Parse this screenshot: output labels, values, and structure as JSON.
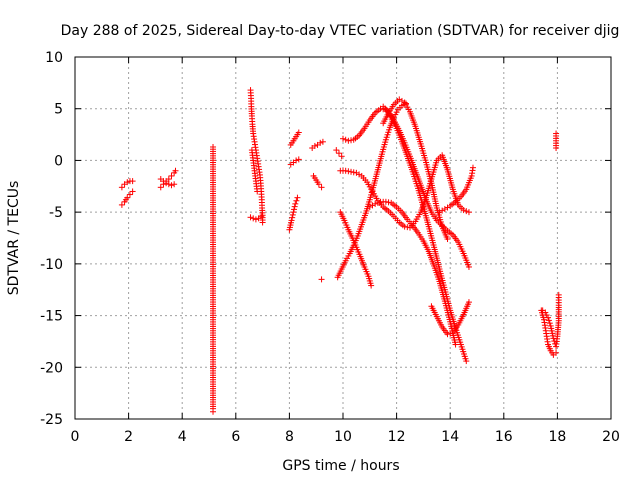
{
  "chart_data": {
    "type": "scatter",
    "title": "Day 288 of 2025, Sidereal Day-to-day VTEC variation (SDTVAR) for receiver djig",
    "xlabel": "GPS time / hours",
    "ylabel": "SDTVAR / TECUs",
    "xlim": [
      0,
      20
    ],
    "ylim": [
      -25,
      10
    ],
    "x_ticks": [
      0,
      2,
      4,
      6,
      8,
      10,
      12,
      14,
      16,
      18,
      20
    ],
    "y_ticks": [
      -25,
      -20,
      -15,
      -10,
      -5,
      0,
      5,
      10
    ],
    "x_tick_labels": [
      "0",
      "2",
      "4",
      "6",
      "8",
      "10",
      "12",
      "14",
      "16",
      "18",
      "20"
    ],
    "y_tick_labels": [
      "-25",
      "-20",
      "-15",
      "-10",
      "-5",
      "0",
      "5",
      "10"
    ],
    "grid": true,
    "marker": "+",
    "color": "#ff0000",
    "series": [
      {
        "name": "s1",
        "points": [
          [
            1.75,
            -2.6
          ],
          [
            1.85,
            -2.3
          ],
          [
            1.95,
            -2.1
          ],
          [
            2.05,
            -2.0
          ],
          [
            2.15,
            -2.0
          ]
        ]
      },
      {
        "name": "s2",
        "points": [
          [
            1.75,
            -4.3
          ],
          [
            1.85,
            -4.0
          ],
          [
            1.95,
            -3.6
          ],
          [
            2.05,
            -3.3
          ],
          [
            2.15,
            -3.0
          ]
        ]
      },
      {
        "name": "s3",
        "points": [
          [
            3.2,
            -2.6
          ],
          [
            3.3,
            -2.3
          ],
          [
            3.4,
            -2.0
          ],
          [
            3.5,
            -1.8
          ],
          [
            3.6,
            -1.5
          ],
          [
            3.7,
            -1.2
          ],
          [
            3.75,
            -1.0
          ]
        ]
      },
      {
        "name": "s4",
        "points": [
          [
            3.2,
            -1.8
          ],
          [
            3.3,
            -2.0
          ],
          [
            3.4,
            -2.2
          ],
          [
            3.5,
            -2.3
          ],
          [
            3.6,
            -2.4
          ],
          [
            3.7,
            -2.3
          ]
        ]
      },
      {
        "name": "s5",
        "points": [
          [
            5.15,
            1.3
          ],
          [
            5.15,
            -7.7
          ],
          [
            5.15,
            -16.9
          ],
          [
            5.15,
            -24.0
          ],
          [
            5.15,
            -24.3
          ]
        ]
      },
      {
        "name": "s6",
        "points": [
          [
            6.55,
            6.8
          ],
          [
            6.57,
            6.0
          ],
          [
            6.58,
            5.2
          ],
          [
            6.6,
            4.3
          ],
          [
            6.62,
            3.5
          ],
          [
            6.65,
            2.6
          ],
          [
            6.7,
            1.8
          ],
          [
            6.75,
            1.0
          ],
          [
            6.8,
            0.2
          ],
          [
            6.85,
            -0.6
          ],
          [
            6.9,
            -1.4
          ],
          [
            6.93,
            -2.2
          ],
          [
            6.95,
            -3.0
          ],
          [
            6.97,
            -3.8
          ],
          [
            6.98,
            -4.6
          ],
          [
            7.0,
            -5.3
          ],
          [
            7.0,
            -6.0
          ]
        ]
      },
      {
        "name": "s7",
        "points": [
          [
            6.55,
            -5.5
          ],
          [
            6.65,
            -5.6
          ],
          [
            6.75,
            -5.7
          ],
          [
            6.85,
            -5.6
          ],
          [
            6.95,
            -5.4
          ]
        ]
      },
      {
        "name": "s8",
        "points": [
          [
            6.6,
            1.0
          ],
          [
            6.65,
            0.0
          ],
          [
            6.7,
            -1.0
          ],
          [
            6.75,
            -2.0
          ],
          [
            6.8,
            -3.0
          ]
        ]
      },
      {
        "name": "s9",
        "points": [
          [
            8.05,
            1.5
          ],
          [
            8.15,
            1.9
          ],
          [
            8.25,
            2.3
          ],
          [
            8.35,
            2.7
          ]
        ]
      },
      {
        "name": "s10",
        "points": [
          [
            8.05,
            -0.4
          ],
          [
            8.15,
            -0.2
          ],
          [
            8.25,
            0.0
          ],
          [
            8.35,
            0.1
          ]
        ]
      },
      {
        "name": "s11",
        "points": [
          [
            8.0,
            -6.7
          ],
          [
            8.08,
            -5.8
          ],
          [
            8.15,
            -5.0
          ],
          [
            8.22,
            -4.2
          ],
          [
            8.3,
            -3.6
          ]
        ]
      },
      {
        "name": "s12",
        "points": [
          [
            8.85,
            1.2
          ],
          [
            8.95,
            1.4
          ],
          [
            9.05,
            1.5
          ],
          [
            9.15,
            1.7
          ],
          [
            9.25,
            1.8
          ]
        ]
      },
      {
        "name": "s13",
        "points": [
          [
            8.9,
            -1.5
          ],
          [
            9.0,
            -1.9
          ],
          [
            9.1,
            -2.3
          ],
          [
            9.2,
            -2.6
          ]
        ]
      },
      {
        "name": "s14",
        "points": [
          [
            9.2,
            -11.5
          ]
        ]
      },
      {
        "name": "s15",
        "points": [
          [
            9.75,
            1.0
          ],
          [
            9.85,
            0.7
          ],
          [
            9.95,
            0.4
          ]
        ]
      },
      {
        "name": "s16",
        "points": [
          [
            9.9,
            -5.0
          ],
          [
            10.05,
            -5.8
          ],
          [
            10.2,
            -6.7
          ],
          [
            10.35,
            -7.5
          ],
          [
            10.5,
            -8.4
          ],
          [
            10.65,
            -9.3
          ],
          [
            10.8,
            -10.3
          ],
          [
            10.95,
            -11.2
          ],
          [
            11.05,
            -12.1
          ]
        ]
      },
      {
        "name": "s17",
        "points": [
          [
            9.8,
            -11.3
          ],
          [
            9.95,
            -10.5
          ],
          [
            10.1,
            -9.7
          ],
          [
            10.25,
            -9.0
          ],
          [
            10.4,
            -8.2
          ],
          [
            10.55,
            -7.3
          ],
          [
            10.7,
            -6.2
          ],
          [
            10.85,
            -5.1
          ],
          [
            11.0,
            -3.8
          ],
          [
            11.15,
            -2.4
          ],
          [
            11.3,
            -0.9
          ],
          [
            11.45,
            0.6
          ],
          [
            11.6,
            2.0
          ],
          [
            11.75,
            3.2
          ],
          [
            11.9,
            4.2
          ],
          [
            12.05,
            4.9
          ],
          [
            12.2,
            5.3
          ],
          [
            12.35,
            5.5
          ]
        ]
      },
      {
        "name": "s18",
        "points": [
          [
            10.0,
            2.1
          ],
          [
            10.2,
            1.9
          ],
          [
            10.4,
            2.0
          ],
          [
            10.6,
            2.4
          ],
          [
            10.8,
            3.1
          ],
          [
            11.0,
            3.9
          ],
          [
            11.2,
            4.6
          ],
          [
            11.4,
            5.0
          ],
          [
            11.6,
            4.9
          ],
          [
            11.8,
            4.2
          ],
          [
            12.0,
            3.1
          ],
          [
            12.2,
            1.8
          ],
          [
            12.4,
            0.4
          ],
          [
            12.6,
            -1.1
          ],
          [
            12.8,
            -2.7
          ],
          [
            13.0,
            -4.5
          ],
          [
            13.2,
            -6.4
          ],
          [
            13.4,
            -8.4
          ],
          [
            13.6,
            -10.5
          ],
          [
            13.8,
            -12.5
          ],
          [
            14.0,
            -14.5
          ],
          [
            14.2,
            -16.2
          ],
          [
            14.4,
            -17.8
          ],
          [
            14.6,
            -19.4
          ]
        ]
      },
      {
        "name": "s19",
        "points": [
          [
            9.9,
            -1.0
          ],
          [
            10.1,
            -1.0
          ],
          [
            10.3,
            -1.1
          ],
          [
            10.5,
            -1.2
          ],
          [
            10.7,
            -1.5
          ],
          [
            10.9,
            -2.1
          ],
          [
            11.1,
            -3.0
          ],
          [
            11.3,
            -3.9
          ],
          [
            11.5,
            -4.5
          ],
          [
            11.7,
            -4.9
          ],
          [
            11.9,
            -5.4
          ],
          [
            12.1,
            -6.0
          ],
          [
            12.3,
            -6.4
          ],
          [
            12.5,
            -6.5
          ],
          [
            12.7,
            -5.9
          ],
          [
            12.9,
            -5.0
          ],
          [
            13.1,
            -3.6
          ],
          [
            13.3,
            -1.8
          ],
          [
            13.5,
            0.0
          ],
          [
            13.7,
            0.5
          ],
          [
            13.9,
            -0.9
          ],
          [
            14.1,
            -2.8
          ],
          [
            14.3,
            -4.3
          ],
          [
            14.5,
            -4.8
          ],
          [
            14.7,
            -5.0
          ]
        ]
      },
      {
        "name": "s20",
        "points": [
          [
            11.5,
            3.6
          ],
          [
            11.7,
            4.6
          ],
          [
            11.9,
            5.4
          ],
          [
            12.1,
            5.9
          ],
          [
            12.3,
            5.6
          ],
          [
            12.5,
            4.7
          ],
          [
            12.7,
            3.3
          ],
          [
            12.9,
            1.6
          ],
          [
            13.1,
            -0.2
          ],
          [
            13.3,
            -2.2
          ],
          [
            13.5,
            -4.6
          ],
          [
            13.7,
            -6.4
          ],
          [
            13.9,
            -7.6
          ]
        ]
      },
      {
        "name": "s21",
        "points": [
          [
            11.0,
            -4.5
          ],
          [
            11.2,
            -4.2
          ],
          [
            11.4,
            -4.0
          ],
          [
            11.6,
            -4.0
          ],
          [
            11.8,
            -4.1
          ],
          [
            12.0,
            -4.5
          ],
          [
            12.2,
            -5.0
          ],
          [
            12.4,
            -5.7
          ],
          [
            12.6,
            -6.3
          ],
          [
            12.8,
            -7.0
          ],
          [
            13.0,
            -7.8
          ],
          [
            13.2,
            -8.8
          ],
          [
            13.4,
            -10.2
          ],
          [
            13.6,
            -11.7
          ],
          [
            13.8,
            -13.6
          ],
          [
            14.0,
            -15.6
          ],
          [
            14.2,
            -17.8
          ]
        ]
      },
      {
        "name": "s22",
        "points": [
          [
            11.5,
            5.2
          ],
          [
            11.7,
            4.7
          ],
          [
            11.9,
            3.9
          ],
          [
            12.1,
            2.9
          ],
          [
            12.3,
            1.7
          ],
          [
            12.5,
            0.4
          ],
          [
            12.7,
            -1.0
          ],
          [
            12.9,
            -2.4
          ],
          [
            13.1,
            -3.8
          ],
          [
            13.3,
            -5.0
          ],
          [
            13.5,
            -5.8
          ],
          [
            13.7,
            -6.3
          ],
          [
            13.9,
            -6.8
          ],
          [
            14.1,
            -7.2
          ],
          [
            14.3,
            -7.9
          ],
          [
            14.5,
            -9.0
          ],
          [
            14.7,
            -10.3
          ]
        ]
      },
      {
        "name": "s23",
        "points": [
          [
            13.3,
            -14.1
          ],
          [
            13.5,
            -15.1
          ],
          [
            13.7,
            -16.1
          ],
          [
            13.9,
            -16.8
          ],
          [
            14.1,
            -16.7
          ],
          [
            14.3,
            -15.9
          ],
          [
            14.5,
            -14.9
          ],
          [
            14.7,
            -13.7
          ]
        ]
      },
      {
        "name": "s24",
        "points": [
          [
            13.6,
            -5.0
          ],
          [
            13.8,
            -4.7
          ],
          [
            14.0,
            -4.4
          ],
          [
            14.2,
            -4.0
          ],
          [
            14.4,
            -3.5
          ],
          [
            14.6,
            -2.8
          ],
          [
            14.8,
            -1.5
          ],
          [
            14.85,
            -0.7
          ]
        ]
      },
      {
        "name": "s25",
        "points": [
          [
            17.4,
            -14.5
          ],
          [
            17.5,
            -15.4
          ],
          [
            17.55,
            -16.2
          ],
          [
            17.6,
            -17.0
          ],
          [
            17.65,
            -17.8
          ],
          [
            17.75,
            -18.4
          ],
          [
            17.85,
            -18.8
          ],
          [
            17.95,
            -18.6
          ]
        ]
      },
      {
        "name": "s26",
        "points": [
          [
            17.45,
            -14.5
          ],
          [
            17.55,
            -14.7
          ],
          [
            17.65,
            -15.2
          ],
          [
            17.75,
            -16.0
          ],
          [
            17.85,
            -17.2
          ],
          [
            17.95,
            -18.0
          ],
          [
            18.0,
            -17.0
          ],
          [
            18.05,
            -15.5
          ],
          [
            18.05,
            -14.0
          ],
          [
            18.05,
            -13.0
          ]
        ]
      },
      {
        "name": "s27",
        "points": [
          [
            17.95,
            2.6
          ],
          [
            17.95,
            1.2
          ]
        ]
      }
    ]
  }
}
